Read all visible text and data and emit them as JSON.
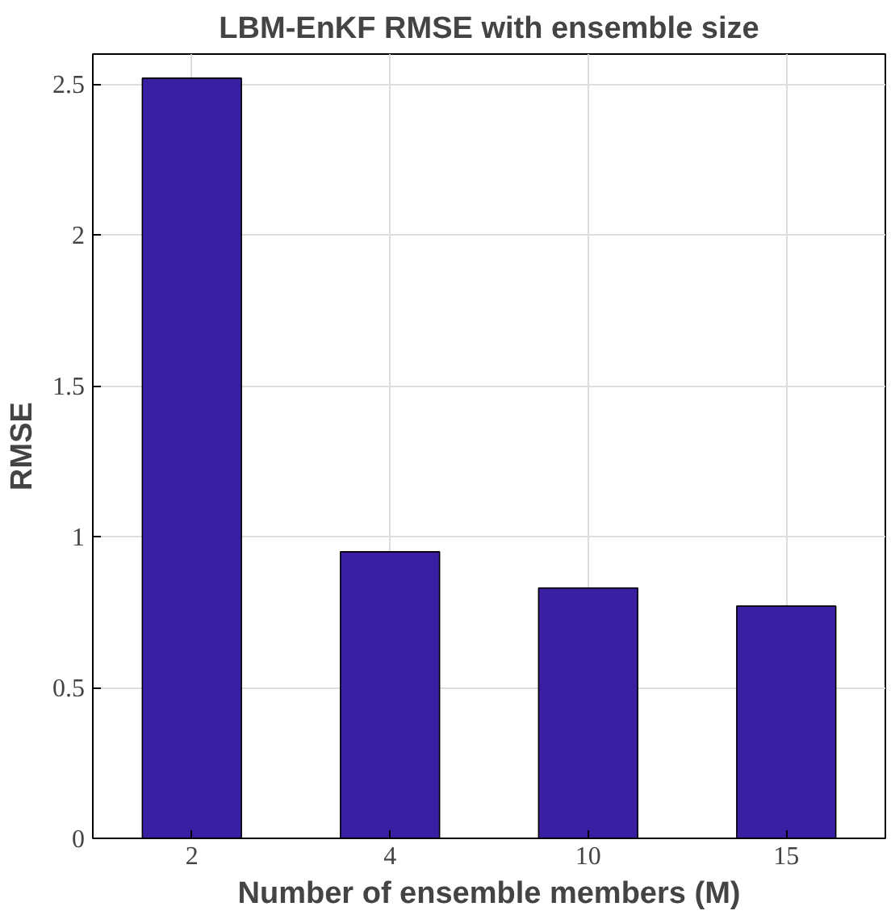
{
  "chart_data": {
    "type": "bar",
    "title": "LBM-EnKF RMSE with ensemble size",
    "xlabel": "Number of ensemble members (M)",
    "ylabel": "RMSE",
    "categories": [
      "2",
      "4",
      "10",
      "15"
    ],
    "values": [
      2.52,
      0.95,
      0.83,
      0.77
    ],
    "color": "#3a1fa3",
    "ylim": [
      0,
      2.6
    ],
    "yticks": [
      0,
      0.5,
      1,
      1.5,
      2,
      2.5
    ],
    "grid": true
  }
}
